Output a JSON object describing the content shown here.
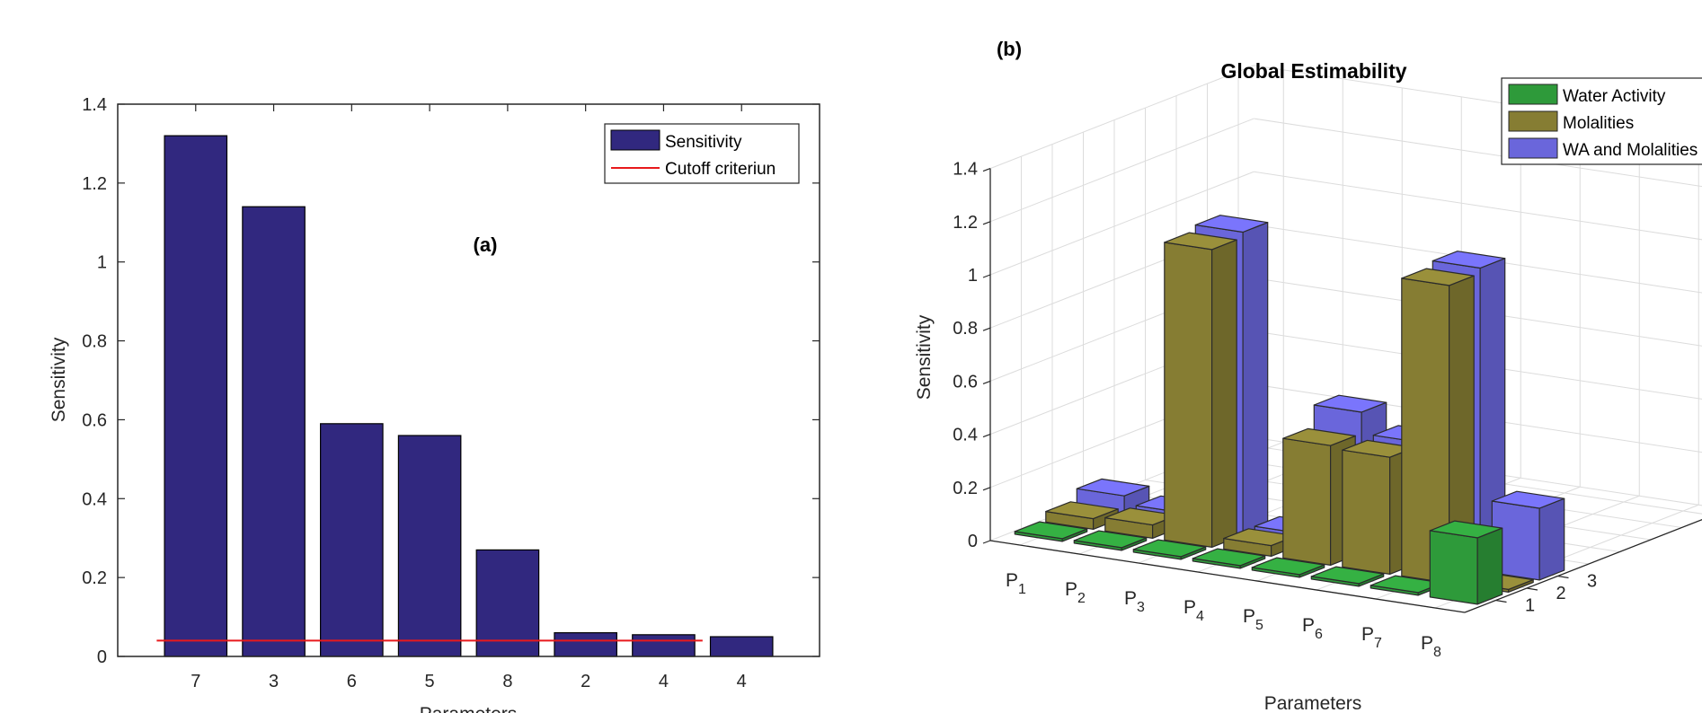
{
  "chart_data": [
    {
      "type": "bar",
      "panel_label": "(a)",
      "categories": [
        "7",
        "3",
        "6",
        "5",
        "8",
        "2",
        "4",
        "4"
      ],
      "series": [
        {
          "name": "Sensitivity",
          "values": [
            1.32,
            1.14,
            0.59,
            0.56,
            0.27,
            0.06,
            0.055,
            0.05
          ],
          "color": "#31287f"
        }
      ],
      "reference_line": {
        "name": "Cutoff criteriun",
        "value": 0.04,
        "x_range": [
          0.5,
          7.5
        ],
        "color": "#e8191c"
      },
      "xlabel": "Parameters",
      "ylabel": "Sensitivity",
      "ylim": [
        0,
        1.4
      ],
      "yticks": [
        "0",
        "0.2",
        "0.4",
        "0.6",
        "0.8",
        "1",
        "1.2",
        "1.4"
      ],
      "legend": {
        "placement": "top-right",
        "entries": [
          "Sensitivity",
          "Cutoff criteriun"
        ]
      },
      "grid": false
    },
    {
      "type": "bar",
      "subtype": "3d-bar",
      "panel_label": "(b)",
      "title": "Global Estimability",
      "categories": [
        "P",
        "P",
        "P",
        "P",
        "P",
        "P",
        "P",
        "P"
      ],
      "category_subscripts": [
        "1",
        "2",
        "3",
        "4",
        "5",
        "6",
        "7",
        "8"
      ],
      "series": [
        {
          "name": "Water Activity",
          "values": [
            0.01,
            0.01,
            0.01,
            0.01,
            0.01,
            0.01,
            0.01,
            0.25
          ],
          "color": "#2e9a3a"
        },
        {
          "name": "Molalities",
          "values": [
            0.04,
            0.05,
            1.12,
            0.04,
            0.45,
            0.44,
            1.12,
            0.01
          ],
          "color": "#867d33"
        },
        {
          "name": "WA and Molalities",
          "values": [
            0.08,
            0.05,
            1.14,
            0.04,
            0.53,
            0.45,
            1.14,
            0.27
          ],
          "color": "#6a66db"
        }
      ],
      "xlabel": "Parameters",
      "ylabel": "Sensitivity",
      "zlim": [
        0,
        1.4
      ],
      "zticks": [
        "0",
        "0.2",
        "0.4",
        "0.6",
        "0.8",
        "1",
        "1.2",
        "1.4"
      ],
      "depth_ticks": [
        "1",
        "2",
        "3"
      ],
      "legend": {
        "placement": "top-right",
        "entries": [
          "Water Activity",
          "Molalities",
          "WA and Molalities"
        ]
      },
      "grid": true
    }
  ]
}
